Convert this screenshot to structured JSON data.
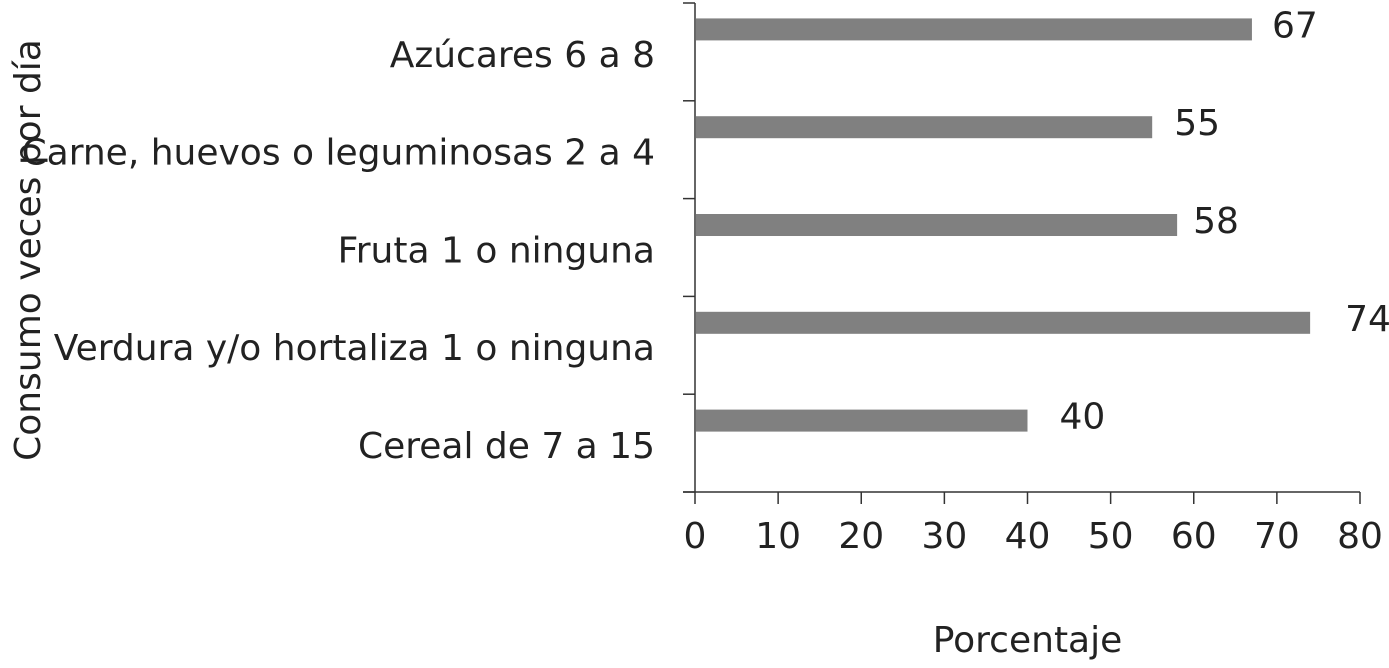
{
  "chart_data": {
    "type": "bar",
    "orientation": "horizontal",
    "categories": [
      "Azúcares 6 a 8",
      "Carne, huevos o leguminosas 2 a 4",
      "Fruta 1 o ninguna",
      "Verdura y/o hortaliza 1 o ninguna",
      "Cereal de 7 a 15"
    ],
    "values": [
      67,
      55,
      58,
      74,
      40
    ],
    "data_labels": [
      "67",
      "55",
      "58",
      "74",
      "40"
    ],
    "xlabel": "Porcentaje",
    "ylabel": "Consumo veces por día",
    "xlim": [
      0,
      80
    ],
    "xticks": [
      0,
      10,
      20,
      30,
      40,
      50,
      60,
      70,
      80
    ],
    "xtick_labels": [
      "0",
      "10",
      "20",
      "30",
      "40",
      "50",
      "60",
      "70",
      "80"
    ],
    "bar_color": "#808080",
    "axis_color": "#333333",
    "text_color": "#222222",
    "grid": false,
    "legend": "none"
  }
}
